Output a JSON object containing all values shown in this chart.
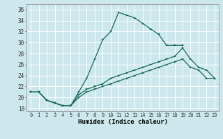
{
  "xlabel": "Humidex (Indice chaleur)",
  "bg_color": "#cce8ec",
  "line_color": "#1a6b5a",
  "grid_color": "#ffffff",
  "xlim": [
    -0.5,
    23.5
  ],
  "ylim": [
    17.5,
    37.0
  ],
  "xticks": [
    0,
    1,
    2,
    3,
    4,
    5,
    6,
    7,
    8,
    9,
    10,
    11,
    12,
    13,
    14,
    15,
    16,
    17,
    18,
    19,
    20,
    21,
    22,
    23
  ],
  "yticks": [
    18,
    20,
    22,
    24,
    26,
    28,
    30,
    32,
    34,
    36
  ],
  "lines": [
    {
      "x": [
        0,
        1,
        2,
        3,
        4,
        5,
        6,
        7,
        8,
        9,
        10,
        11,
        12,
        13,
        14,
        15,
        16,
        17,
        18,
        19
      ],
      "y": [
        21,
        21,
        19.5,
        19,
        18.5,
        18.5,
        21,
        23.5,
        27,
        30.5,
        32,
        35.5,
        35,
        34.5,
        33.5,
        32.5,
        31.5,
        29.5,
        29.5,
        29.5
      ]
    },
    {
      "x": [
        0,
        1,
        2,
        3,
        4,
        5,
        6,
        7,
        8,
        9,
        10,
        11,
        12,
        13,
        14,
        15,
        16,
        17,
        18,
        19,
        20,
        21,
        22,
        23
      ],
      "y": [
        21,
        21,
        19.5,
        19,
        18.5,
        18.5,
        20,
        21,
        21.5,
        22,
        22.5,
        23,
        23.5,
        24,
        24.5,
        25,
        25.5,
        26,
        26.5,
        27,
        25.5,
        25,
        23.5,
        23.5
      ]
    },
    {
      "x": [
        0,
        1,
        2,
        3,
        4,
        5,
        6,
        7,
        8,
        9,
        10,
        11,
        12,
        13,
        14,
        15,
        16,
        17,
        18,
        19,
        20,
        21,
        22,
        23
      ],
      "y": [
        21,
        21,
        19.5,
        19,
        18.5,
        18.5,
        20.5,
        21.5,
        22,
        22.5,
        23.5,
        24,
        24.5,
        25,
        25.5,
        26,
        26.5,
        27,
        27.5,
        29,
        27,
        25.5,
        25,
        23.5
      ]
    }
  ]
}
